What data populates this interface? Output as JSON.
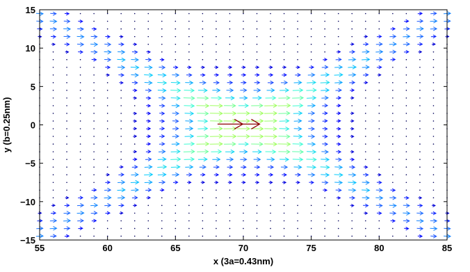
{
  "chart_data": {
    "type": "quiver",
    "title": "",
    "xlabel": "x (3a=0.43nm)",
    "ylabel": "y (b=0.25nm)",
    "xlim": [
      55,
      85
    ],
    "ylim": [
      -15,
      15
    ],
    "x_ticks": [
      "55",
      "60",
      "65",
      "70",
      "75",
      "80",
      "85"
    ],
    "y_ticks": [
      "15",
      "10",
      "5",
      "0",
      "−5",
      "−10",
      "−15"
    ],
    "grid": false,
    "legend": "none",
    "field": {
      "x_range": [
        55,
        85
      ],
      "x_step": 1,
      "y_range": [
        -14.5,
        14.5
      ],
      "y_step": 1,
      "direction": "+x",
      "description_of_magnitude": "largest near (70,0); decays away from lines y = ±(x-70)*0.95"
    },
    "highlight_arrow": {
      "x0": 68.1,
      "x1": 71.2,
      "y": 0.1,
      "color": "#8b0000"
    },
    "colormap": [
      "#00008b",
      "#0000ff",
      "#1e64ff",
      "#00c8ff",
      "#40ffd0",
      "#a0ff60"
    ]
  }
}
